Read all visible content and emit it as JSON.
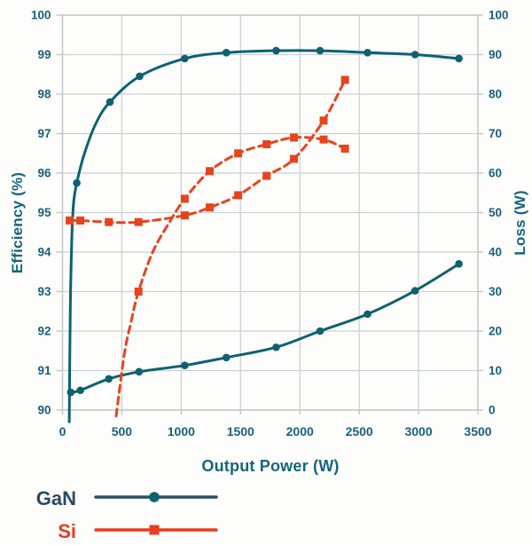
{
  "chart_data": {
    "type": "line",
    "title": "",
    "xlabel": "Output Power (W)",
    "ylabel_left": "Efficiency (%)",
    "ylabel_right": "Loss (W)",
    "x_range": [
      0,
      3500
    ],
    "y_left_range": [
      90,
      100
    ],
    "y_right_range": [
      0,
      100
    ],
    "x_ticks": [
      0,
      500,
      1000,
      1500,
      2000,
      2500,
      3000,
      3500
    ],
    "y_left_ticks": [
      90,
      91,
      92,
      93,
      94,
      95,
      96,
      97,
      98,
      99,
      100
    ],
    "y_right_ticks": [
      0,
      10,
      20,
      30,
      40,
      50,
      60,
      70,
      80,
      90,
      100
    ],
    "grid": true,
    "legend_position": "bottom-left",
    "series": [
      {
        "name": "GaN Efficiency",
        "legend": "GaN",
        "axis": "left",
        "style": "solid",
        "marker": "circle",
        "color": "#0d6170",
        "pts": [
          [
            57,
            89.7,
            0
          ],
          [
            66,
            92.6,
            0
          ],
          [
            80,
            94.5,
            0
          ],
          [
            95,
            95.3,
            0
          ],
          [
            120,
            95.75,
            1
          ],
          [
            180,
            96.45,
            0
          ],
          [
            280,
            97.25,
            0
          ],
          [
            400,
            97.8,
            1
          ],
          [
            650,
            98.45,
            1
          ],
          [
            1030,
            98.9,
            1
          ],
          [
            1380,
            99.05,
            1
          ],
          [
            1800,
            99.1,
            1
          ],
          [
            2170,
            99.1,
            1
          ],
          [
            2570,
            99.05,
            1
          ],
          [
            2970,
            99.0,
            1
          ],
          [
            3340,
            98.9,
            1
          ]
        ]
      },
      {
        "name": "GaN Loss",
        "legend": "GaN",
        "axis": "right",
        "style": "solid",
        "marker": "circle",
        "color": "#0d6170",
        "pts": [
          [
            70,
            4.5,
            1
          ],
          [
            150,
            5.0,
            1
          ],
          [
            390,
            7.9,
            1
          ],
          [
            645,
            9.7,
            1
          ],
          [
            1030,
            11.3,
            1
          ],
          [
            1380,
            13.3,
            1
          ],
          [
            1800,
            15.9,
            1
          ],
          [
            2170,
            20.0,
            1
          ],
          [
            2570,
            24.3,
            1
          ],
          [
            2970,
            30.2,
            1
          ],
          [
            3340,
            37.0,
            1
          ]
        ]
      },
      {
        "name": "Si Efficiency",
        "legend": "Si",
        "axis": "left",
        "style": "dashed",
        "marker": "square",
        "color": "#e8431f",
        "pts": [
          [
            452,
            89.85,
            0
          ],
          [
            520,
            91.4,
            0
          ],
          [
            575,
            92.2,
            0
          ],
          [
            640,
            93.0,
            1
          ],
          [
            760,
            94.0,
            0
          ],
          [
            900,
            94.75,
            0
          ],
          [
            1030,
            95.35,
            1
          ],
          [
            1240,
            96.05,
            1
          ],
          [
            1480,
            96.5,
            1
          ],
          [
            1720,
            96.73,
            1
          ],
          [
            1950,
            96.9,
            1
          ],
          [
            2200,
            96.85,
            1
          ],
          [
            2380,
            96.62,
            1
          ]
        ]
      },
      {
        "name": "Si Loss",
        "legend": "Si",
        "axis": "right",
        "style": "dashed",
        "marker": "square",
        "color": "#e8431f",
        "pts": [
          [
            60,
            48.0,
            1
          ],
          [
            150,
            48.0,
            1
          ],
          [
            390,
            47.6,
            1
          ],
          [
            640,
            47.6,
            1
          ],
          [
            1030,
            49.3,
            1
          ],
          [
            1240,
            51.3,
            1
          ],
          [
            1480,
            54.4,
            1
          ],
          [
            1720,
            59.3,
            1
          ],
          [
            1950,
            63.6,
            1
          ],
          [
            2200,
            73.3,
            1
          ],
          [
            2380,
            83.6,
            1
          ]
        ]
      }
    ],
    "legend": [
      {
        "label": "GaN",
        "line_color": "#2e4d66",
        "marker": "circle",
        "marker_color": "#0d6170",
        "text_color": "#2c4a60"
      },
      {
        "label": "Si",
        "line_color": "#ee3a20",
        "marker": "square",
        "marker_color": "#ee3a20",
        "text_color": "#ee3a20"
      }
    ]
  },
  "style": {
    "background": "#fdfdfc",
    "grid_color": "#cdd0d3",
    "frame_color": "#c2c6c9",
    "tick_label_color": "#1b607a",
    "axis_title_color": "#17657a"
  }
}
